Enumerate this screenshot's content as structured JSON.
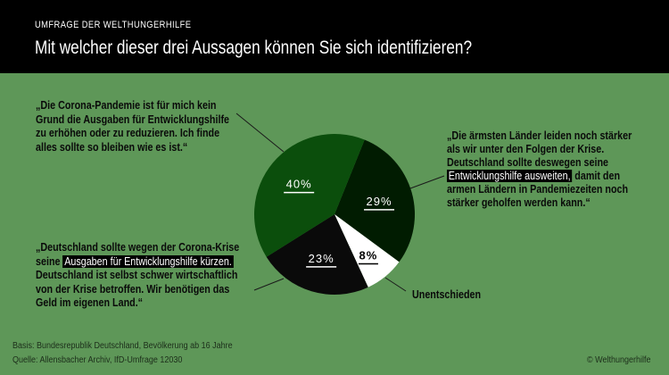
{
  "header": {
    "kicker": "UMFRAGE DER WELTHUNGERHILFE",
    "title": "Mit welcher dieser drei Aussagen können Sie sich identifizieren?"
  },
  "chart_data": {
    "type": "pie",
    "title": "Mit welcher dieser drei Aussagen können Sie sich identifizieren?",
    "slices": [
      {
        "label": "„Die ärmsten Länder leiden noch stärker als wir unter den Folgen der Krise. Deutschland sollte deswegen seine Entwicklungshilfe ausweiten, damit den armen Ländern in Pandemiezeiten noch stärker geholfen werden kann.“",
        "value": 29,
        "value_label": "29%",
        "color": "#011c01"
      },
      {
        "label": "Unentschieden",
        "value": 8,
        "value_label": "8%",
        "color": "#ffffff"
      },
      {
        "label": "„Deutschland sollte wegen der Corona-Krise seine Ausgaben für Entwicklungshilfe kürzen. Deutschland ist selbst schwer wirtschaftlich von der Krise betroffen. Wir benötigen das Geld im eigenen Land.“",
        "value": 23,
        "value_label": "23%",
        "color": "#0a0a0a"
      },
      {
        "label": "„Die Corona-Pandemie ist für mich kein Grund die Ausgaben für Entwicklungshilfe zu erhöhen oder zu reduzieren. Ich finde alles sollte so bleiben wie es ist.“",
        "value": 40,
        "value_label": "40%",
        "color": "#0b4e0c"
      }
    ]
  },
  "quotes": {
    "q40": [
      "„Die Corona-Pandemie ist für mich kein",
      "Grund die Ausgaben für Entwicklungshilfe",
      "zu erhöhen oder zu reduzieren. Ich finde",
      "alles sollte so bleiben wie es ist.“"
    ],
    "q29": {
      "l1": "„Die ärmsten Länder leiden noch stärker",
      "l2": "als wir unter den Folgen der Krise.",
      "l3": "Deutschland sollte deswegen seine",
      "hl": "Entwicklungshilfe ausweiten,",
      "l4b": " damit den",
      "l5": "armen Ländern in Pandemiezeiten noch",
      "l6": "stärker geholfen werden kann.“"
    },
    "q23": {
      "l1": "„Deutschland sollte wegen der Corona-Krise",
      "l2a": "seine ",
      "hl": "Ausgaben für Entwicklungshilfe kürzen.",
      "l3": "Deutschland ist selbst schwer wirtschaftlich",
      "l4": "von der Krise betroffen. Wir benötigen das",
      "l5": "Geld im eigenen Land.“"
    },
    "q8": "Unentschieden"
  },
  "footer": {
    "basis": "Basis: Bundesrepublik Deutschland, Bevölkerung ab 16 Jahre",
    "source": "Quelle: Allensbacher Archiv, IfD-Umfrage 12030",
    "copyright": "© Welthungerhilfe"
  }
}
